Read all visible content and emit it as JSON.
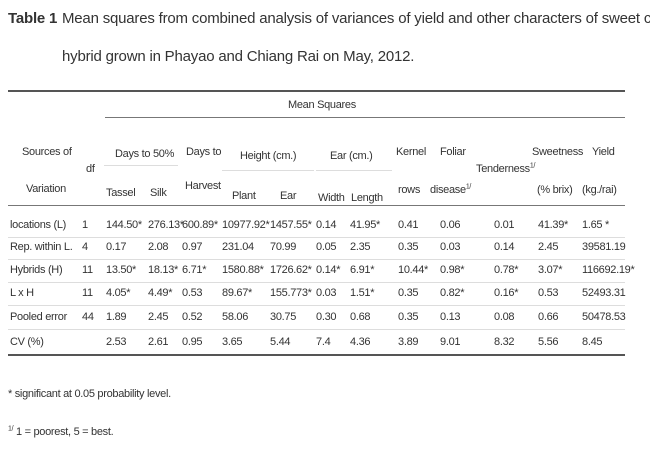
{
  "caption": {
    "label": "Table 1",
    "lines": [
      "Mean squares from combined analysis of variances of yield and other characters of sweet corn's",
      "hybrid grown in Phayao and Chiang Rai on May, 2012."
    ]
  },
  "table": {
    "heading": "Mean Squares",
    "header": {
      "source": [
        "Sources of",
        "Variation"
      ],
      "df": "df",
      "days_to_50": "Days to 50%",
      "tassel": "Tassel",
      "silk": "Silk",
      "days_to_harvest": [
        "Days to",
        "Harvest"
      ],
      "height": "Height (cm.)",
      "plant": "Plant",
      "ear": "Ear",
      "ear_cm": "Ear (cm.)",
      "width": "Width",
      "length": "Length",
      "kernel": [
        "Kernel",
        "rows"
      ],
      "foliar": [
        "Foliar",
        "disease"
      ],
      "tenderness": "Tenderness",
      "note_mark": "1/",
      "sweetness": [
        "Sweetness",
        "(% brix)"
      ],
      "yield": [
        "Yield",
        "(kg./rai)"
      ]
    },
    "rows": [
      [
        "locations (L)",
        "1",
        "144.50*",
        "276.13*",
        "600.89*",
        "10977.92*",
        "1457.55*",
        "0.14",
        "41.95*",
        "0.41",
        "0.06",
        "0.01",
        "41.39*",
        "1.65 *"
      ],
      [
        "Rep. within L.",
        "4",
        "0.17",
        "2.08",
        "0.97",
        "231.04",
        "70.99",
        "0.05",
        "2.35",
        "0.35",
        "0.03",
        "0.14",
        "2.45",
        "39581.19"
      ],
      [
        "Hybrids (H)",
        "11",
        "13.50*",
        "18.13*",
        "6.71*",
        "1580.88*",
        "1726.62*",
        "0.14*",
        "6.91*",
        "10.44*",
        "0.98*",
        "0.78*",
        "3.07*",
        "116692.19*"
      ],
      [
        "L x H",
        "11",
        "4.05*",
        "4.49*",
        "0.53",
        "89.67*",
        "155.773*",
        "0.03",
        "1.51*",
        "0.35",
        "0.82*",
        "0.16*",
        "0.53",
        "52493.31"
      ],
      [
        "Pooled error",
        "44",
        "1.89",
        "2.45",
        "0.52",
        "58.06",
        "30.75",
        "0.30",
        "0.68",
        "0.35",
        "0.13",
        "0.08",
        "0.66",
        "50478.53"
      ],
      [
        "CV (%)",
        null,
        "2.53",
        "2.61",
        "0.95",
        "3.65",
        "5.44",
        "7.4",
        "4.36",
        "3.89",
        "9.01",
        "8.32",
        "5.56",
        "8.45"
      ]
    ]
  },
  "footnotes": [
    "* significant at 0.05 probability level.",
    {
      "mark": "1/",
      "text": "1 = poorest, 5 = best."
    }
  ]
}
